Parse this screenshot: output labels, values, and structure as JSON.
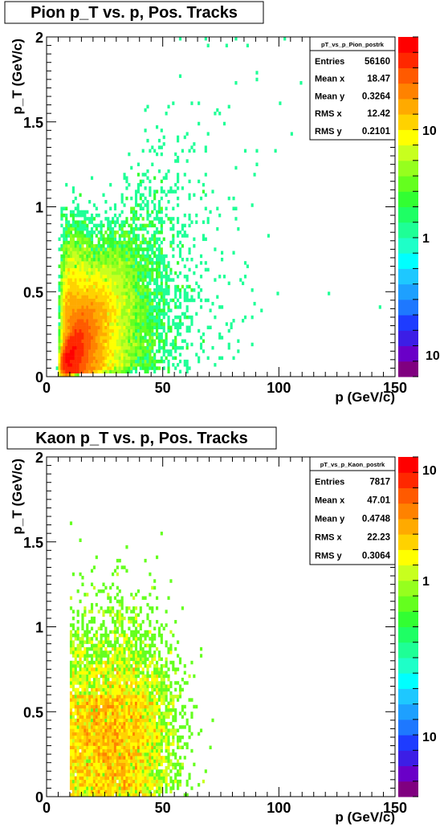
{
  "chart_data": [
    {
      "type": "heatmap",
      "title": "Pion p_T vs. p, Pos. Tracks",
      "xlabel": "p (GeV/c)",
      "ylabel": "p_T (GeV/c)",
      "xlim": [
        0,
        150
      ],
      "ylim": [
        0,
        2
      ],
      "x_ticks": [
        "0",
        "50",
        "100",
        "150"
      ],
      "y_ticks": [
        "0",
        "0.5",
        "1",
        "1.5",
        "2"
      ],
      "z_scale": "log",
      "z_tick_labels": [
        "10",
        "1",
        "10"
      ],
      "stats": {
        "name": "pT_vs_p_Pion_postrk",
        "rows": [
          {
            "label": "Entries",
            "value": "56160"
          },
          {
            "label": "Mean x",
            "value": "18.47"
          },
          {
            "label": "Mean y",
            "value": "0.3264"
          },
          {
            "label": "RMS x",
            "value": "12.42"
          },
          {
            "label": "RMS y",
            "value": "0.2101"
          }
        ]
      },
      "entries": 56160,
      "mean_x": 18.47,
      "mean_y": 0.3264,
      "rms_x": 12.42,
      "rms_y": 0.2101,
      "peak_region": {
        "x": 8,
        "y": 0.25
      }
    },
    {
      "type": "heatmap",
      "title": "Kaon p_T vs. p, Pos. Tracks",
      "xlabel": "p (GeV/c)",
      "ylabel": "p_T (GeV/c)",
      "xlim": [
        0,
        150
      ],
      "ylim": [
        0,
        2
      ],
      "x_ticks": [
        "0",
        "50",
        "100",
        "150"
      ],
      "y_ticks": [
        "0",
        "0.5",
        "1",
        "1.5",
        "2"
      ],
      "z_scale": "log",
      "z_tick_labels": [
        "10",
        "1",
        "10"
      ],
      "stats": {
        "name": "pT_vs_p_Kaon_postrk",
        "rows": [
          {
            "label": "Entries",
            "value": "7817"
          },
          {
            "label": "Mean x",
            "value": "47.01"
          },
          {
            "label": "Mean y",
            "value": "0.4748"
          },
          {
            "label": "RMS x",
            "value": "22.23"
          },
          {
            "label": "RMS y",
            "value": "0.3064"
          }
        ]
      },
      "entries": 7817,
      "mean_x": 47.01,
      "mean_y": 0.4748,
      "rms_x": 22.23,
      "rms_y": 0.3064,
      "peak_region": {
        "x": 25,
        "y": 0.4
      }
    }
  ],
  "palette": [
    "#800080",
    "#6a00c8",
    "#3c1ee6",
    "#1e3cff",
    "#1e78ff",
    "#1ea0ff",
    "#1ec8ff",
    "#00ffff",
    "#1effc8",
    "#1eff96",
    "#1eff64",
    "#32ff32",
    "#64ff1e",
    "#96ff1e",
    "#c8ff1e",
    "#ffff00",
    "#ffd200",
    "#ffaa00",
    "#ff8200",
    "#ff5a00",
    "#ff2800",
    "#ff0000"
  ]
}
